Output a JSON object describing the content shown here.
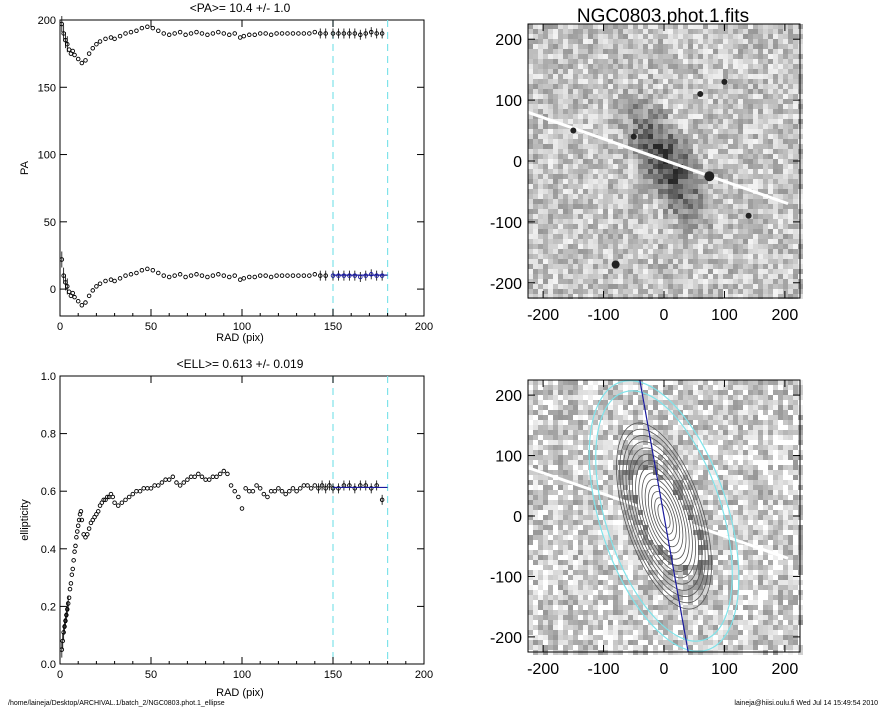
{
  "page": {
    "footer_left": "/home/laineja/Desktop/ARCHIVAL.1/batch_2/NGC0803.phot.1_ellipse",
    "footer_right": "laineja@hiisi.oulu.fi  Wed Jul 14 15:49:54 2010",
    "image_title": "NGC0803.phot.1.fits"
  },
  "colors": {
    "guide_line": "#7fe3ea",
    "fit_line": "#1a1a9e",
    "points": "#000000",
    "axes": "#000000"
  },
  "icons": [
    "galaxy-image",
    "contour-overlay-image"
  ],
  "chart_data": [
    {
      "type": "scatter",
      "title": "<PA>=  10.4 +/-   1.0",
      "xlabel": "RAD (pix)",
      "ylabel": "PA",
      "xlim": [
        0,
        200
      ],
      "ylim": [
        -20,
        200
      ],
      "xticks": [
        0,
        50,
        100,
        150,
        200
      ],
      "yticks": [
        0,
        50,
        100,
        150,
        200
      ],
      "vlines": [
        150,
        180
      ],
      "fit_line": {
        "x": [
          150,
          180
        ],
        "y": [
          10.4,
          10.4
        ]
      },
      "series": [
        {
          "x": [
            1,
            2,
            3,
            4,
            5,
            6,
            7,
            8,
            10,
            12,
            14,
            16,
            18,
            20,
            22,
            25,
            28,
            30,
            33,
            36,
            39,
            42,
            45,
            48,
            51,
            54,
            57,
            60,
            63,
            66,
            69,
            72,
            75,
            78,
            81,
            84,
            87,
            90,
            93,
            96,
            99,
            101,
            104,
            107,
            110,
            113,
            116,
            119,
            122,
            125,
            128,
            131,
            134,
            137,
            140,
            143,
            146,
            150,
            153,
            156,
            159,
            162,
            165,
            168,
            171,
            174,
            177
          ],
          "y": [
            22,
            10,
            5,
            2,
            -2,
            -5,
            -3,
            -6,
            -9,
            -12,
            -10,
            -5,
            -1,
            2,
            4,
            6,
            7,
            6,
            8,
            10,
            11,
            12,
            14,
            15,
            14,
            12,
            10,
            9,
            10,
            11,
            9,
            10,
            11,
            10,
            9,
            10,
            11,
            10,
            9,
            10,
            7,
            8,
            9,
            9,
            10,
            10,
            9,
            10,
            10,
            10,
            10,
            10,
            10,
            10,
            11,
            10,
            10,
            10,
            10,
            10,
            10,
            10,
            9,
            10,
            11,
            10,
            10
          ]
        },
        {
          "x": [
            1,
            2,
            3,
            4,
            5,
            6,
            7,
            8,
            10,
            12,
            14,
            16,
            18,
            20,
            22,
            25,
            28,
            30,
            33,
            36,
            39,
            42,
            45,
            48,
            51,
            54,
            57,
            60,
            63,
            66,
            69,
            72,
            75,
            78,
            81,
            84,
            87,
            90,
            93,
            96,
            99,
            101,
            104,
            107,
            110,
            113,
            116,
            119,
            122,
            125,
            128,
            131,
            134,
            137,
            140,
            143,
            146,
            150,
            153,
            156,
            159,
            162,
            165,
            168,
            171,
            174,
            177
          ],
          "y": [
            197,
            190,
            185,
            182,
            178,
            175,
            177,
            174,
            171,
            168,
            170,
            175,
            179,
            182,
            184,
            186,
            187,
            186,
            188,
            190,
            191,
            192,
            194,
            195,
            194,
            192,
            190,
            189,
            190,
            191,
            189,
            190,
            191,
            190,
            189,
            190,
            191,
            190,
            189,
            190,
            187,
            188,
            189,
            189,
            190,
            190,
            189,
            190,
            190,
            190,
            190,
            190,
            190,
            190,
            191,
            190,
            190,
            190,
            190,
            190,
            190,
            190,
            189,
            190,
            191,
            190,
            190
          ]
        }
      ]
    },
    {
      "type": "scatter",
      "title": "<ELL>= 0.613 +/-  0.019",
      "xlabel": "RAD (pix)",
      "ylabel": "ellipticity",
      "xlim": [
        0,
        200
      ],
      "ylim": [
        0.0,
        1.0
      ],
      "xticks": [
        0,
        50,
        100,
        150,
        200
      ],
      "yticks": [
        0.0,
        0.2,
        0.4,
        0.6,
        0.8,
        1.0
      ],
      "ytick_labels": [
        "0.0",
        "0.2",
        "0.4",
        "0.6",
        "0.8",
        "1.0"
      ],
      "vlines": [
        150,
        180
      ],
      "fit_line": {
        "x": [
          150,
          180
        ],
        "y": [
          0.613,
          0.613
        ]
      },
      "series": [
        {
          "x": [
            1,
            1.5,
            2,
            2.5,
            3,
            3.5,
            4,
            4.5,
            5,
            5.5,
            6,
            6.5,
            7,
            7.5,
            8,
            8.5,
            9,
            9.5,
            10,
            10.5,
            11,
            11.5,
            12,
            13,
            14,
            15,
            16,
            17,
            18,
            19,
            20,
            21,
            22,
            23,
            24,
            25,
            26,
            27,
            28,
            29,
            30,
            32,
            34,
            36,
            38,
            40,
            42,
            44,
            46,
            48,
            50,
            52,
            54,
            56,
            58,
            60,
            62,
            64,
            66,
            68,
            70,
            72,
            74,
            76,
            78,
            80,
            82,
            84,
            86,
            88,
            90,
            92,
            94,
            96,
            98,
            100,
            102,
            104,
            106,
            108,
            110,
            112,
            114,
            116,
            118,
            120,
            122,
            124,
            126,
            128,
            130,
            132,
            134,
            136,
            138,
            140,
            142,
            144,
            146,
            148,
            150,
            153,
            156,
            159,
            162,
            165,
            168,
            171,
            174,
            177
          ],
          "y": [
            0.05,
            0.08,
            0.11,
            0.13,
            0.15,
            0.17,
            0.19,
            0.21,
            0.23,
            0.26,
            0.28,
            0.31,
            0.33,
            0.36,
            0.39,
            0.41,
            0.44,
            0.46,
            0.48,
            0.5,
            0.52,
            0.53,
            0.5,
            0.45,
            0.44,
            0.45,
            0.47,
            0.49,
            0.5,
            0.51,
            0.52,
            0.53,
            0.55,
            0.56,
            0.57,
            0.57,
            0.58,
            0.58,
            0.59,
            0.58,
            0.56,
            0.55,
            0.56,
            0.57,
            0.58,
            0.59,
            0.6,
            0.6,
            0.61,
            0.61,
            0.61,
            0.62,
            0.62,
            0.63,
            0.64,
            0.64,
            0.65,
            0.63,
            0.62,
            0.63,
            0.64,
            0.65,
            0.65,
            0.66,
            0.65,
            0.64,
            0.64,
            0.65,
            0.65,
            0.66,
            0.67,
            0.66,
            0.62,
            0.6,
            0.58,
            0.54,
            0.61,
            0.6,
            0.6,
            0.62,
            0.61,
            0.59,
            0.58,
            0.6,
            0.6,
            0.61,
            0.6,
            0.59,
            0.6,
            0.61,
            0.6,
            0.61,
            0.62,
            0.62,
            0.61,
            0.62,
            0.61,
            0.62,
            0.61,
            0.62,
            0.61,
            0.61,
            0.62,
            0.62,
            0.61,
            0.62,
            0.62,
            0.61,
            0.62,
            0.57
          ]
        }
      ]
    }
  ],
  "images": [
    {
      "title": "NGC0803.phot.1.fits",
      "xticks": [
        -200,
        -100,
        0,
        100,
        200
      ],
      "yticks": [
        -200,
        -100,
        0,
        100,
        200
      ],
      "xlim": [
        -225,
        225
      ],
      "ylim": [
        -225,
        225
      ]
    },
    {
      "title": "",
      "xticks": [
        -200,
        -100,
        0,
        100,
        200
      ],
      "yticks": [
        -200,
        -100,
        0,
        100,
        200
      ],
      "xlim": [
        -225,
        225
      ],
      "ylim": [
        -225,
        225
      ]
    }
  ]
}
